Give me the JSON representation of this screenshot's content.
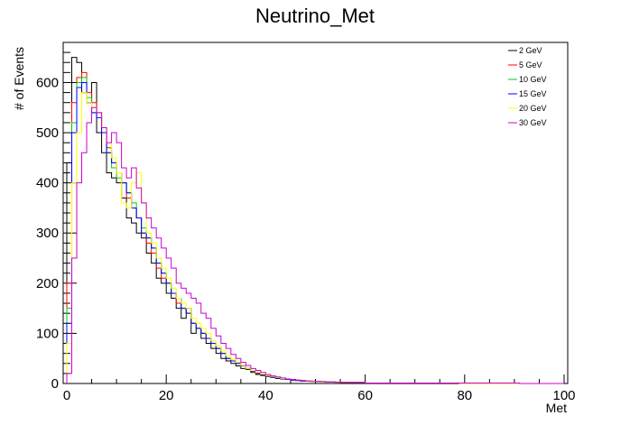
{
  "chart_data": {
    "type": "line",
    "title": "Neutrino_Met",
    "xlabel": "Met",
    "ylabel": "# of Events",
    "xlim": [
      0,
      100
    ],
    "ylim": [
      0,
      680
    ],
    "x_ticks": [
      0,
      20,
      40,
      60,
      80,
      100
    ],
    "y_ticks": [
      0,
      100,
      200,
      300,
      400,
      500,
      600
    ],
    "bin_width": 1,
    "legend_position": "top-right",
    "grid": false,
    "series": [
      {
        "name": "2 GeV",
        "color": "#000000",
        "values": [
          440,
          650,
          640,
          580,
          560,
          600,
          500,
          460,
          420,
          410,
          400,
          370,
          330,
          320,
          300,
          290,
          260,
          240,
          210,
          200,
          180,
          170,
          150,
          130,
          150,
          100,
          110,
          90,
          80,
          70,
          60,
          50,
          45,
          40,
          35,
          30,
          28,
          22,
          18,
          16,
          14,
          12,
          10,
          9,
          8,
          7,
          6,
          5,
          5,
          4,
          4,
          3,
          3,
          3,
          2,
          2,
          2,
          2,
          2,
          2,
          1,
          1,
          1,
          1,
          1,
          1,
          1,
          1,
          1,
          1,
          1,
          1,
          1,
          1,
          1,
          1,
          1,
          1,
          0,
          0,
          0,
          0,
          0,
          0,
          0,
          0,
          0,
          0,
          0,
          0,
          0,
          0,
          0,
          0,
          0,
          0,
          0,
          0,
          0,
          0
        ]
      },
      {
        "name": "5 GeV",
        "color": "#ff0000",
        "values": [
          200,
          560,
          610,
          620,
          580,
          560,
          540,
          500,
          470,
          440,
          420,
          400,
          370,
          350,
          330,
          300,
          280,
          260,
          230,
          210,
          200,
          180,
          160,
          150,
          140,
          120,
          110,
          100,
          90,
          80,
          70,
          60,
          50,
          45,
          40,
          35,
          30,
          25,
          20,
          18,
          15,
          13,
          11,
          10,
          8,
          7,
          6,
          5,
          5,
          4,
          4,
          3,
          3,
          3,
          2,
          2,
          2,
          2,
          2,
          2,
          1,
          1,
          1,
          1,
          1,
          1,
          1,
          1,
          1,
          1,
          1,
          1,
          1,
          1,
          1,
          1,
          1,
          1,
          1,
          0,
          0,
          0,
          0,
          0,
          0,
          0,
          0,
          0,
          0,
          0,
          0,
          0,
          0,
          0,
          0,
          0,
          0,
          0,
          0,
          0
        ]
      },
      {
        "name": "10 GeV",
        "color": "#00cc00",
        "values": [
          150,
          520,
          600,
          610,
          570,
          540,
          540,
          510,
          460,
          430,
          410,
          400,
          380,
          360,
          330,
          310,
          290,
          270,
          240,
          220,
          200,
          180,
          170,
          150,
          140,
          120,
          110,
          100,
          90,
          80,
          70,
          60,
          50,
          45,
          40,
          35,
          30,
          25,
          21,
          18,
          15,
          13,
          11,
          10,
          8,
          7,
          6,
          5,
          5,
          4,
          4,
          3,
          3,
          3,
          2,
          2,
          2,
          2,
          2,
          2,
          1,
          1,
          1,
          1,
          1,
          1,
          1,
          1,
          1,
          1,
          1,
          1,
          1,
          1,
          1,
          1,
          1,
          1,
          1,
          0,
          0,
          0,
          0,
          0,
          0,
          0,
          0,
          0,
          0,
          0,
          0,
          0,
          0,
          0,
          0,
          0,
          0,
          0,
          0,
          0
        ]
      },
      {
        "name": "15 GeV",
        "color": "#0000ff",
        "values": [
          120,
          500,
          590,
          600,
          560,
          540,
          530,
          500,
          460,
          440,
          420,
          400,
          380,
          350,
          330,
          300,
          290,
          270,
          240,
          220,
          200,
          180,
          170,
          150,
          140,
          120,
          110,
          100,
          90,
          80,
          70,
          60,
          50,
          45,
          40,
          35,
          30,
          25,
          21,
          18,
          15,
          13,
          11,
          10,
          8,
          7,
          6,
          5,
          5,
          4,
          4,
          3,
          3,
          3,
          2,
          2,
          2,
          2,
          2,
          2,
          1,
          1,
          1,
          1,
          1,
          1,
          1,
          1,
          1,
          1,
          1,
          1,
          1,
          1,
          1,
          1,
          1,
          1,
          1,
          0,
          0,
          0,
          0,
          0,
          0,
          0,
          0,
          0,
          0,
          0,
          0,
          0,
          0,
          0,
          0,
          0,
          0,
          0,
          0,
          0
        ]
      },
      {
        "name": "20 GeV",
        "color": "#ffff00",
        "values": [
          80,
          400,
          500,
          580,
          560,
          550,
          540,
          510,
          480,
          450,
          420,
          360,
          350,
          400,
          420,
          360,
          300,
          280,
          250,
          230,
          210,
          190,
          170,
          160,
          150,
          130,
          120,
          110,
          100,
          85,
          75,
          65,
          55,
          48,
          42,
          36,
          30,
          26,
          22,
          19,
          16,
          14,
          12,
          10,
          9,
          8,
          7,
          6,
          5,
          4,
          4,
          3,
          3,
          3,
          2,
          2,
          2,
          2,
          2,
          2,
          1,
          1,
          1,
          1,
          1,
          1,
          1,
          1,
          1,
          1,
          1,
          1,
          1,
          1,
          1,
          1,
          1,
          1,
          1,
          0,
          0,
          0,
          0,
          0,
          0,
          0,
          0,
          0,
          0,
          0,
          0,
          0,
          0,
          0,
          0,
          0,
          0,
          0,
          0,
          0
        ]
      },
      {
        "name": "30 GeV",
        "color": "#cc00cc",
        "values": [
          20,
          250,
          400,
          460,
          520,
          550,
          540,
          510,
          480,
          500,
          480,
          430,
          410,
          430,
          390,
          360,
          330,
          310,
          290,
          270,
          250,
          230,
          200,
          190,
          180,
          170,
          160,
          140,
          130,
          110,
          95,
          80,
          70,
          58,
          50,
          42,
          36,
          30,
          26,
          22,
          18,
          15,
          13,
          11,
          9,
          8,
          7,
          6,
          5,
          5,
          4,
          4,
          3,
          3,
          3,
          2,
          2,
          2,
          2,
          2,
          1,
          1,
          1,
          1,
          1,
          1,
          1,
          1,
          1,
          1,
          1,
          1,
          1,
          1,
          1,
          1,
          1,
          1,
          1,
          1,
          1,
          1,
          1,
          1,
          1,
          1,
          1,
          1,
          1,
          1,
          1,
          0,
          0,
          0,
          0,
          0,
          0,
          0,
          0,
          0
        ]
      }
    ]
  }
}
